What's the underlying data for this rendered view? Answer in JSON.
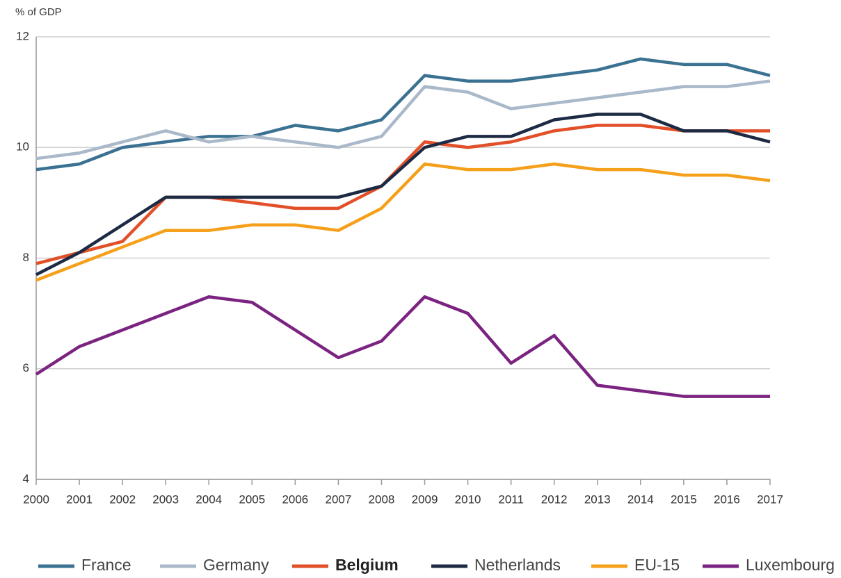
{
  "chart_data": {
    "type": "line",
    "y_label": "% of GDP",
    "categories": [
      "2000",
      "2001",
      "2002",
      "2003",
      "2004",
      "2005",
      "2006",
      "2007",
      "2008",
      "2009",
      "2010",
      "2011",
      "2012",
      "2013",
      "2014",
      "2015",
      "2016",
      "2017"
    ],
    "ylim": [
      4,
      12
    ],
    "yticks": [
      4,
      6,
      8,
      10,
      12
    ],
    "grid": true,
    "series": [
      {
        "name": "France",
        "color": "#3b7292",
        "values": [
          9.6,
          9.7,
          10.0,
          10.1,
          10.2,
          10.2,
          10.4,
          10.3,
          10.5,
          11.3,
          11.2,
          11.2,
          11.3,
          11.4,
          11.6,
          11.5,
          11.5,
          11.3
        ]
      },
      {
        "name": "Germany",
        "color": "#aab9c9",
        "values": [
          9.8,
          9.9,
          10.1,
          10.3,
          10.1,
          10.2,
          10.1,
          10.0,
          10.2,
          11.1,
          11.0,
          10.7,
          10.8,
          10.9,
          11.0,
          11.1,
          11.1,
          11.2
        ]
      },
      {
        "name": "Belgium",
        "color": "#e2502a",
        "bold": true,
        "values": [
          7.9,
          8.1,
          8.3,
          9.1,
          9.1,
          9.0,
          8.9,
          8.9,
          9.3,
          10.1,
          10.0,
          10.1,
          10.3,
          10.4,
          10.4,
          10.3,
          10.3,
          10.3
        ]
      },
      {
        "name": "Netherlands",
        "color": "#1c2a44",
        "values": [
          7.7,
          8.1,
          8.6,
          9.1,
          9.1,
          9.1,
          9.1,
          9.1,
          9.3,
          10.0,
          10.2,
          10.2,
          10.5,
          10.6,
          10.6,
          10.3,
          10.3,
          10.1
        ]
      },
      {
        "name": "EU-15",
        "color": "#f5a01a",
        "values": [
          7.6,
          7.9,
          8.2,
          8.5,
          8.5,
          8.6,
          8.6,
          8.5,
          8.9,
          9.7,
          9.6,
          9.6,
          9.7,
          9.6,
          9.6,
          9.5,
          9.5,
          9.4
        ]
      },
      {
        "name": "Luxembourg",
        "color": "#7b2380",
        "values": [
          5.9,
          6.4,
          6.7,
          7.0,
          7.3,
          7.2,
          6.7,
          6.2,
          6.5,
          7.3,
          7.0,
          6.1,
          6.6,
          5.7,
          5.6,
          5.5,
          5.5,
          5.5
        ]
      }
    ]
  }
}
